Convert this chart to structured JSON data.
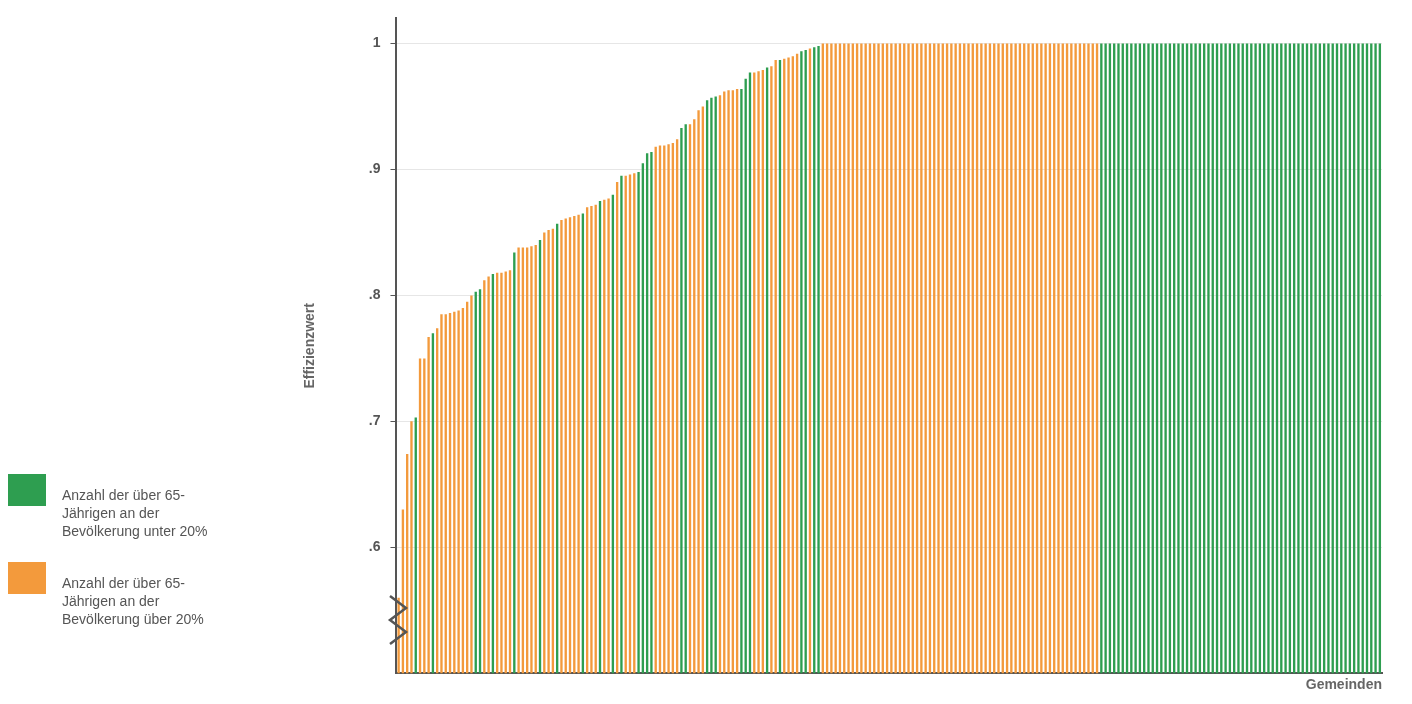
{
  "chart_data": {
    "type": "bar",
    "ylabel": "Effizienzwert",
    "xlabel": "Gemeinden",
    "categories": [
      null,
      null,
      null,
      null,
      null,
      null,
      null,
      null,
      null,
      null,
      null,
      null,
      null,
      null,
      null,
      null,
      null,
      null,
      null,
      null,
      null,
      null,
      null,
      null,
      null,
      null,
      null,
      null,
      null,
      null,
      null,
      null,
      null,
      null,
      null,
      null,
      null,
      null,
      null,
      null,
      null,
      null,
      null,
      null,
      null,
      null,
      null,
      null,
      null,
      null,
      null,
      null,
      null,
      null,
      null,
      null,
      null,
      null,
      null,
      null,
      null,
      null,
      null,
      null,
      null,
      null,
      null,
      null,
      null,
      null,
      null,
      null,
      null,
      null,
      null,
      null,
      null,
      null,
      null,
      null,
      null,
      null,
      null,
      null,
      null,
      null,
      null,
      null,
      null,
      null,
      null,
      null,
      null,
      null,
      null,
      null,
      null,
      null,
      null,
      null,
      null,
      null,
      null,
      null,
      null,
      null,
      null,
      null,
      null,
      null,
      null,
      null,
      null,
      null,
      null,
      null,
      null,
      null,
      null,
      null,
      null,
      null,
      null,
      null,
      null,
      null,
      null,
      null,
      null,
      null,
      null,
      null,
      null,
      null,
      null,
      null,
      null,
      null,
      null,
      null,
      null,
      null,
      null,
      null,
      null,
      null,
      null,
      null,
      null,
      null,
      null,
      null,
      null,
      null,
      null,
      null,
      null,
      null,
      null,
      null,
      null,
      null,
      null,
      null,
      null,
      null,
      null,
      null,
      null,
      null,
      null,
      null,
      null,
      null,
      null,
      null,
      null,
      null,
      null,
      null,
      null,
      null,
      null,
      null,
      null,
      null,
      null,
      null,
      null,
      null,
      null,
      null,
      null,
      null,
      null,
      null,
      null,
      null,
      null,
      null,
      null,
      null,
      null,
      null,
      null,
      null,
      null,
      null,
      null,
      null,
      null,
      null,
      null,
      null,
      null,
      null,
      null,
      null,
      null,
      null,
      null,
      null,
      null,
      null,
      null,
      null,
      null,
      null,
      null,
      null
    ],
    "series": [
      {
        "name": "Anzahl der über 65-Jährigen an der Bevölkerung unter 20%",
        "color": "#2e9e50",
        "values": [
          null,
          null,
          null,
          null,
          0.703,
          null,
          null,
          null,
          0.77,
          null,
          null,
          null,
          null,
          null,
          null,
          null,
          null,
          null,
          0.803,
          0.805,
          null,
          null,
          0.817,
          null,
          null,
          null,
          null,
          0.834,
          null,
          null,
          null,
          null,
          null,
          0.844,
          null,
          null,
          null,
          0.857,
          null,
          null,
          null,
          null,
          null,
          0.865,
          null,
          null,
          null,
          0.875,
          null,
          null,
          0.88,
          null,
          0.895,
          null,
          null,
          null,
          0.898,
          0.905,
          0.913,
          0.914,
          null,
          null,
          null,
          null,
          null,
          null,
          0.933,
          0.936,
          null,
          null,
          null,
          null,
          0.955,
          0.957,
          0.958,
          null,
          null,
          null,
          null,
          null,
          0.964,
          0.972,
          0.977,
          null,
          null,
          null,
          0.981,
          null,
          null,
          0.987,
          null,
          null,
          null,
          null,
          0.994,
          0.995,
          null,
          0.997,
          0.998,
          null,
          null,
          null,
          null,
          null,
          null,
          null,
          null,
          null,
          null,
          null,
          null,
          null,
          null,
          null,
          null,
          null,
          null,
          null,
          null,
          null,
          null,
          null,
          null,
          null,
          null,
          null,
          null,
          null,
          null,
          null,
          null,
          null,
          null,
          null,
          null,
          null,
          null,
          null,
          null,
          null,
          null,
          null,
          null,
          null,
          null,
          null,
          null,
          null,
          null,
          null,
          null,
          null,
          null,
          null,
          null,
          null,
          null,
          null,
          null,
          null,
          null,
          null,
          null,
          null,
          1,
          1,
          1,
          1,
          1,
          1,
          1,
          1,
          1,
          1,
          1,
          1,
          1,
          1,
          1,
          1,
          1,
          1,
          1,
          1,
          1,
          1,
          1,
          1,
          1,
          1,
          1,
          1,
          1,
          1,
          1,
          1,
          1,
          1,
          1,
          1,
          1,
          1,
          1,
          1,
          1,
          1,
          1,
          1,
          1,
          1,
          1,
          1,
          1,
          1,
          1,
          1,
          1,
          1,
          1,
          1,
          1,
          1,
          1,
          1,
          1,
          1,
          1,
          1,
          1,
          1
        ]
      },
      {
        "name": "Anzahl der über 65-Jährigen an der Bevölkerung über 20%",
        "color": "#f39a3c",
        "values": [
          0.56,
          0.63,
          0.674,
          0.7,
          null,
          0.75,
          0.75,
          0.767,
          null,
          0.774,
          0.785,
          0.785,
          0.786,
          0.787,
          0.788,
          0.79,
          0.795,
          0.8,
          null,
          null,
          0.812,
          0.815,
          null,
          0.818,
          0.818,
          0.819,
          0.82,
          null,
          0.838,
          0.838,
          0.838,
          0.839,
          0.84,
          null,
          0.85,
          0.852,
          0.853,
          null,
          0.86,
          0.861,
          0.862,
          0.863,
          0.864,
          null,
          0.87,
          0.871,
          0.872,
          null,
          0.876,
          0.877,
          null,
          0.89,
          null,
          0.895,
          0.896,
          0.897,
          null,
          null,
          null,
          null,
          0.918,
          0.919,
          0.919,
          0.92,
          0.921,
          0.924,
          null,
          null,
          0.936,
          0.94,
          0.947,
          0.95,
          null,
          null,
          null,
          0.959,
          0.962,
          0.963,
          0.963,
          0.964,
          null,
          null,
          null,
          0.977,
          0.978,
          0.979,
          null,
          0.982,
          0.987,
          null,
          0.988,
          0.989,
          0.99,
          0.992,
          null,
          null,
          0.996,
          null,
          null,
          1,
          1,
          1,
          1,
          1,
          1,
          1,
          1,
          1,
          1,
          1,
          1,
          1,
          1,
          1,
          1,
          1,
          1,
          1,
          1,
          1,
          1,
          1,
          1,
          1,
          1,
          1,
          1,
          1,
          1,
          1,
          1,
          1,
          1,
          1,
          1,
          1,
          1,
          1,
          1,
          1,
          1,
          1,
          1,
          1,
          1,
          1,
          1,
          1,
          1,
          1,
          1,
          1,
          1,
          1,
          1,
          1,
          1,
          1,
          1,
          1,
          1,
          1,
          1,
          1,
          null,
          null,
          null,
          null,
          null,
          null,
          null,
          null,
          null,
          null,
          null,
          null,
          null,
          null,
          null,
          null,
          null,
          null,
          null,
          null,
          null,
          null,
          null,
          null,
          null,
          null,
          null,
          null,
          null,
          null,
          null,
          null,
          null,
          null,
          null,
          null,
          null,
          null,
          null,
          null,
          null,
          null,
          null,
          null,
          null,
          null,
          null,
          null,
          null,
          null,
          null,
          null,
          null,
          null,
          null,
          null,
          null,
          null,
          null,
          null,
          null,
          null,
          null,
          null,
          null,
          null
        ]
      }
    ],
    "ylim": [
      0.5,
      1.02
    ],
    "yticks": [
      {
        "value": 0.6,
        "label": ".6"
      },
      {
        "value": 0.7,
        "label": ".7"
      },
      {
        "value": 0.8,
        "label": ".8"
      },
      {
        "value": 0.9,
        "label": ".9"
      },
      1
    ],
    "grid": "y",
    "legend": "left",
    "tick_labels": "y"
  }
}
